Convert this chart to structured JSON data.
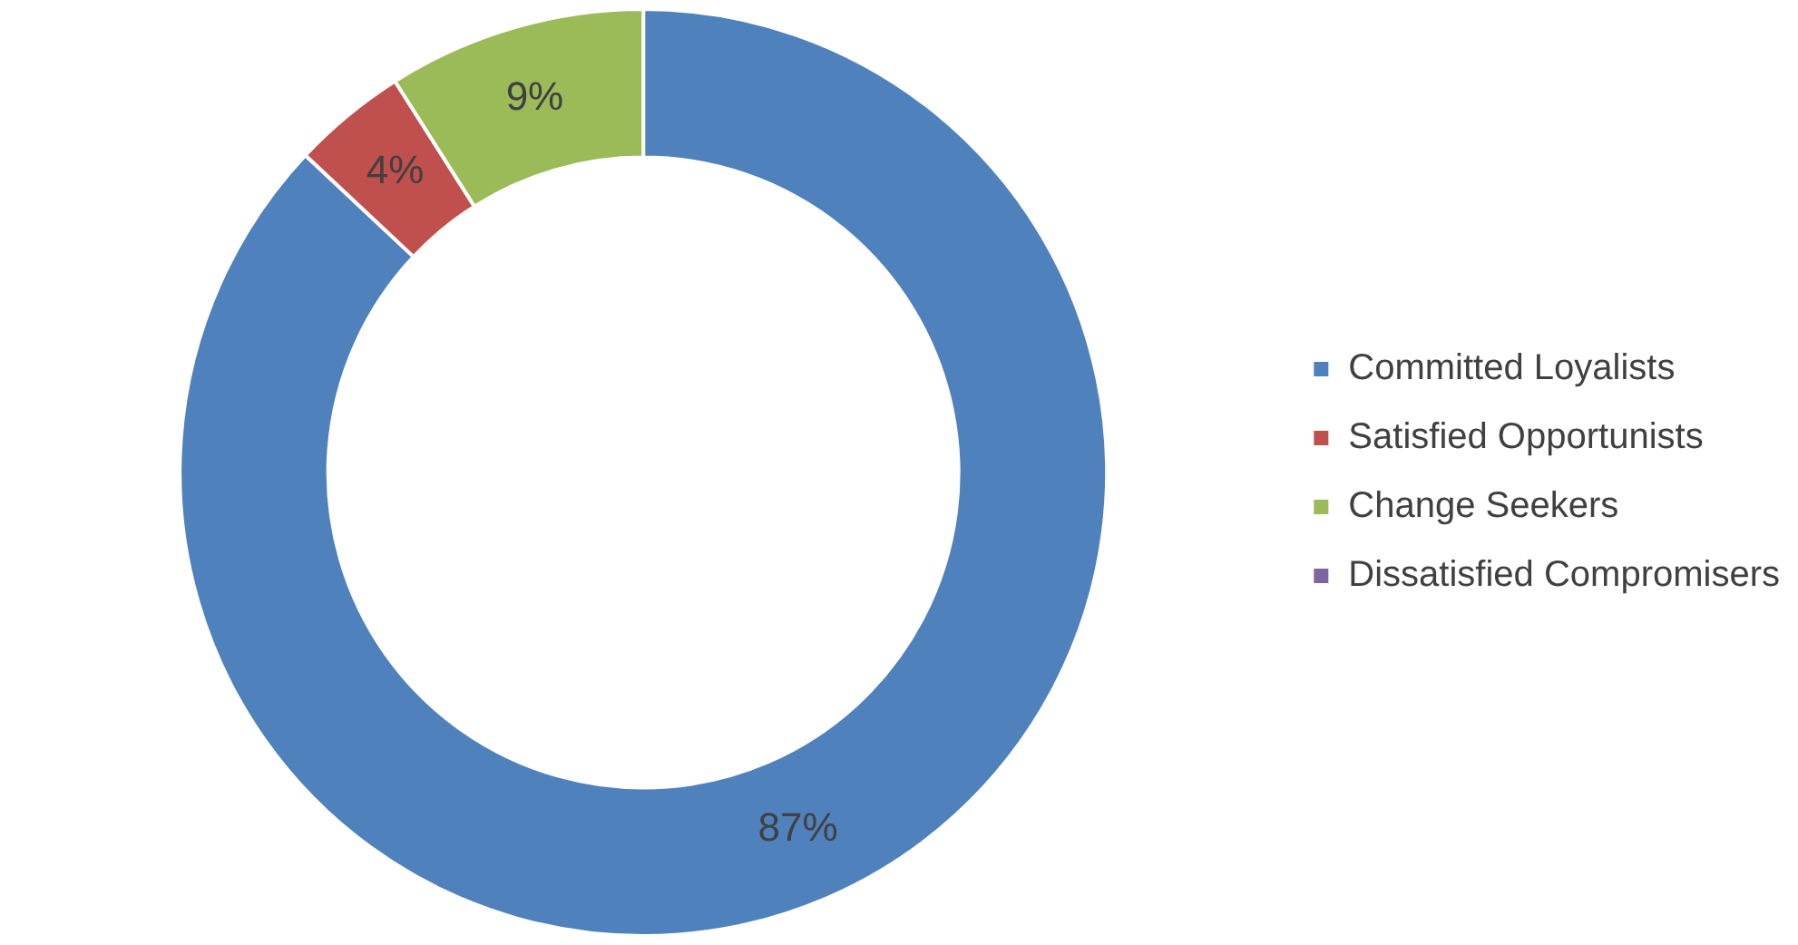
{
  "chart_data": {
    "type": "donut",
    "categories": [
      "Committed Loyalists",
      "Satisfied Opportunists",
      "Change Seekers",
      "Dissatisfied Compromisers"
    ],
    "values": [
      87,
      4,
      9,
      0
    ],
    "colors": [
      "#4f81bd",
      "#c0504d",
      "#9bbb59",
      "#8064a2"
    ],
    "value_labels": [
      "87%",
      "4%",
      "9%",
      null
    ],
    "legend": "right"
  }
}
